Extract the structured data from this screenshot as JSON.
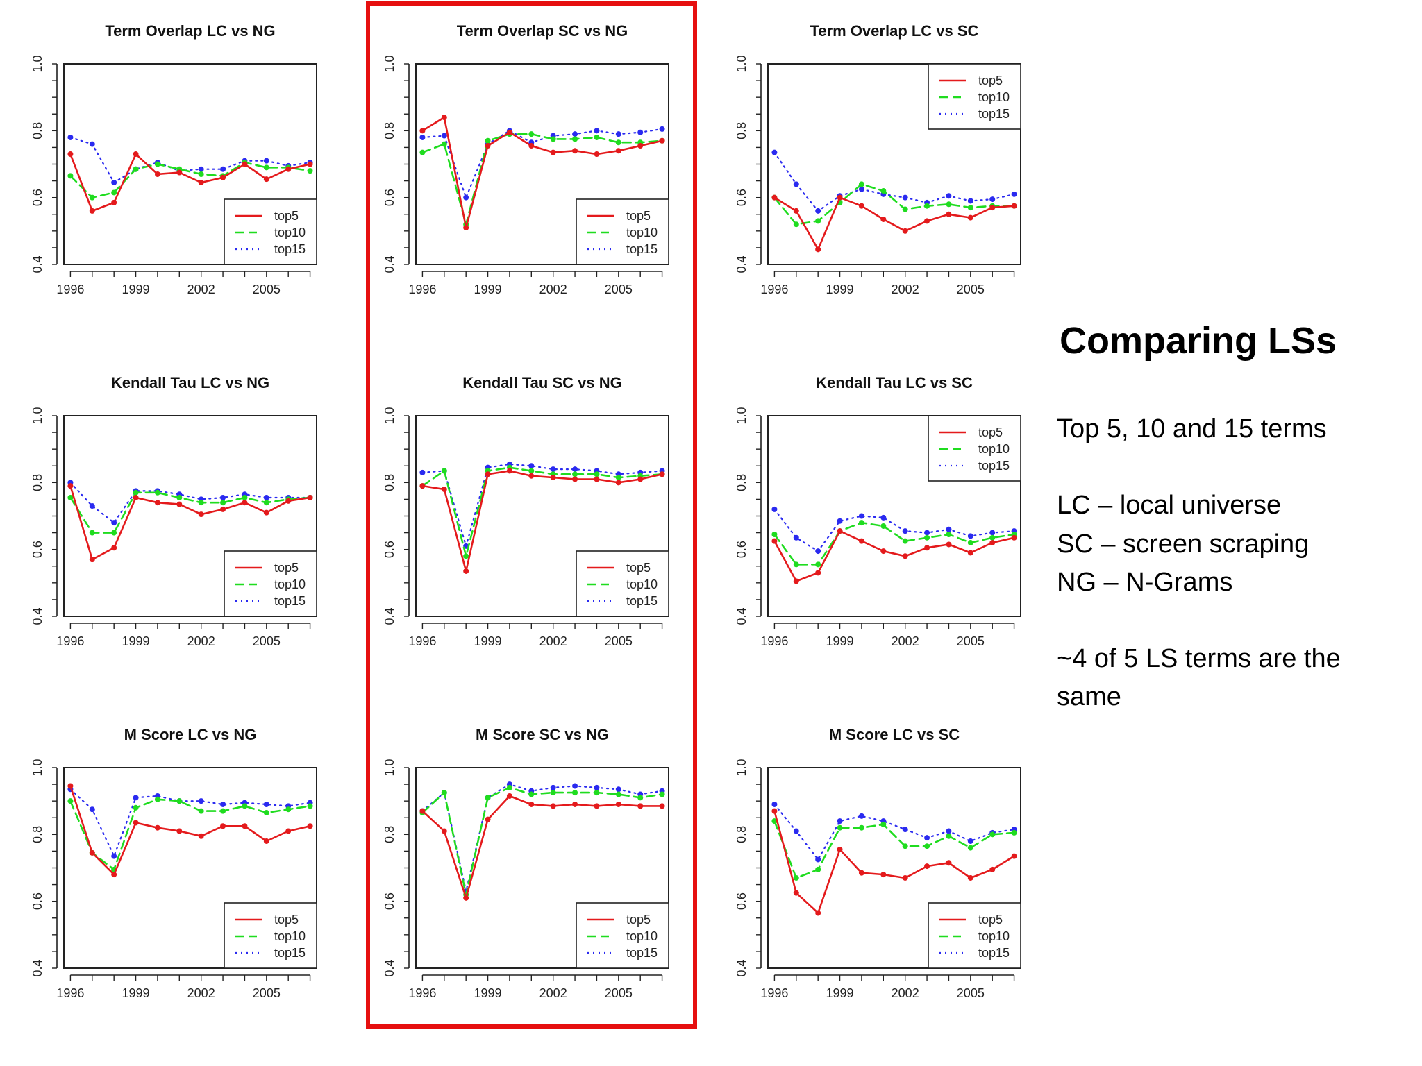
{
  "slide": {
    "title": "Comparing LSs",
    "subtitle": "Top 5, 10 and 15 terms",
    "definitions": [
      "LC – local universe",
      "SC – screen scraping",
      "NG – N-Grams"
    ],
    "note": "~4 of 5 LS terms are the same"
  },
  "colors": {
    "top5": "#e41a1c",
    "top10": "#1fdc1f",
    "top15": "#2a2af0",
    "highlight": "#e60f0f"
  },
  "highlighted_column": "SC vs NG",
  "chart_data": [
    {
      "type": "line",
      "title": "Term Overlap LC vs NG",
      "xlabel": "",
      "ylabel": "",
      "x": [
        1996,
        1997,
        1998,
        1999,
        2000,
        2001,
        2002,
        2003,
        2004,
        2005,
        2006,
        2007
      ],
      "xticks": [
        1996,
        1999,
        2002,
        2005
      ],
      "ylim": [
        0.4,
        1.0
      ],
      "yticks": [
        0.4,
        0.6,
        0.8,
        1.0
      ],
      "legend_position": "bottomright",
      "grid": false,
      "series": [
        {
          "name": "top5",
          "values": [
            0.73,
            0.56,
            0.585,
            0.73,
            0.67,
            0.675,
            0.645,
            0.66,
            0.7,
            0.655,
            0.685,
            0.7
          ]
        },
        {
          "name": "top10",
          "values": [
            0.665,
            0.6,
            0.615,
            0.685,
            0.7,
            0.685,
            0.67,
            0.665,
            0.705,
            0.69,
            0.69,
            0.68
          ]
        },
        {
          "name": "top15",
          "values": [
            0.78,
            0.76,
            0.645,
            0.685,
            0.705,
            0.68,
            0.685,
            0.685,
            0.71,
            0.71,
            0.695,
            0.705
          ]
        }
      ]
    },
    {
      "type": "line",
      "title": "Term Overlap SC vs NG",
      "xlabel": "",
      "ylabel": "",
      "x": [
        1996,
        1997,
        1998,
        1999,
        2000,
        2001,
        2002,
        2003,
        2004,
        2005,
        2006,
        2007
      ],
      "xticks": [
        1996,
        1999,
        2002,
        2005
      ],
      "ylim": [
        0.4,
        1.0
      ],
      "yticks": [
        0.4,
        0.6,
        0.8,
        1.0
      ],
      "legend_position": "bottomright",
      "grid": false,
      "series": [
        {
          "name": "top5",
          "values": [
            0.8,
            0.84,
            0.51,
            0.755,
            0.795,
            0.755,
            0.735,
            0.74,
            0.73,
            0.74,
            0.755,
            0.77
          ]
        },
        {
          "name": "top10",
          "values": [
            0.735,
            0.76,
            0.52,
            0.77,
            0.79,
            0.79,
            0.775,
            0.775,
            0.78,
            0.765,
            0.765,
            0.77
          ]
        },
        {
          "name": "top15",
          "values": [
            0.78,
            0.785,
            0.6,
            0.76,
            0.8,
            0.765,
            0.785,
            0.79,
            0.8,
            0.79,
            0.795,
            0.805
          ]
        }
      ]
    },
    {
      "type": "line",
      "title": "Term Overlap LC vs SC",
      "xlabel": "",
      "ylabel": "",
      "x": [
        1996,
        1997,
        1998,
        1999,
        2000,
        2001,
        2002,
        2003,
        2004,
        2005,
        2006,
        2007
      ],
      "xticks": [
        1996,
        1999,
        2002,
        2005
      ],
      "ylim": [
        0.4,
        1.0
      ],
      "yticks": [
        0.4,
        0.6,
        0.8,
        1.0
      ],
      "legend_position": "topright",
      "grid": false,
      "series": [
        {
          "name": "top5",
          "values": [
            0.6,
            0.56,
            0.445,
            0.6,
            0.575,
            0.535,
            0.5,
            0.53,
            0.55,
            0.54,
            0.57,
            0.575
          ]
        },
        {
          "name": "top10",
          "values": [
            0.6,
            0.52,
            0.53,
            0.585,
            0.64,
            0.62,
            0.565,
            0.575,
            0.58,
            0.57,
            0.575,
            0.575
          ]
        },
        {
          "name": "top15",
          "values": [
            0.735,
            0.64,
            0.56,
            0.605,
            0.625,
            0.61,
            0.6,
            0.585,
            0.605,
            0.59,
            0.595,
            0.61
          ]
        }
      ]
    },
    {
      "type": "line",
      "title": "Kendall Tau LC vs NG",
      "xlabel": "",
      "ylabel": "",
      "x": [
        1996,
        1997,
        1998,
        1999,
        2000,
        2001,
        2002,
        2003,
        2004,
        2005,
        2006,
        2007
      ],
      "xticks": [
        1996,
        1999,
        2002,
        2005
      ],
      "ylim": [
        0.4,
        1.0
      ],
      "yticks": [
        0.4,
        0.6,
        0.8,
        1.0
      ],
      "legend_position": "bottomright",
      "grid": false,
      "series": [
        {
          "name": "top5",
          "values": [
            0.79,
            0.57,
            0.605,
            0.755,
            0.74,
            0.735,
            0.705,
            0.72,
            0.74,
            0.71,
            0.745,
            0.755
          ]
        },
        {
          "name": "top10",
          "values": [
            0.755,
            0.65,
            0.65,
            0.77,
            0.77,
            0.755,
            0.74,
            0.74,
            0.755,
            0.74,
            0.75,
            0.755
          ]
        },
        {
          "name": "top15",
          "values": [
            0.8,
            0.73,
            0.68,
            0.775,
            0.775,
            0.765,
            0.75,
            0.755,
            0.765,
            0.755,
            0.755,
            0.755
          ]
        }
      ]
    },
    {
      "type": "line",
      "title": "Kendall Tau SC vs NG",
      "xlabel": "",
      "ylabel": "",
      "x": [
        1996,
        1997,
        1998,
        1999,
        2000,
        2001,
        2002,
        2003,
        2004,
        2005,
        2006,
        2007
      ],
      "xticks": [
        1996,
        1999,
        2002,
        2005
      ],
      "ylim": [
        0.4,
        1.0
      ],
      "yticks": [
        0.4,
        0.6,
        0.8,
        1.0
      ],
      "legend_position": "bottomright",
      "grid": false,
      "series": [
        {
          "name": "top5",
          "values": [
            0.79,
            0.78,
            0.535,
            0.825,
            0.835,
            0.82,
            0.815,
            0.81,
            0.81,
            0.8,
            0.81,
            0.825
          ]
        },
        {
          "name": "top10",
          "values": [
            0.79,
            0.835,
            0.58,
            0.835,
            0.845,
            0.835,
            0.825,
            0.825,
            0.825,
            0.815,
            0.82,
            0.825
          ]
        },
        {
          "name": "top15",
          "values": [
            0.83,
            0.835,
            0.61,
            0.845,
            0.855,
            0.85,
            0.84,
            0.84,
            0.835,
            0.825,
            0.83,
            0.835
          ]
        }
      ]
    },
    {
      "type": "line",
      "title": "Kendall Tau LC vs SC",
      "xlabel": "",
      "ylabel": "",
      "x": [
        1996,
        1997,
        1998,
        1999,
        2000,
        2001,
        2002,
        2003,
        2004,
        2005,
        2006,
        2007
      ],
      "xticks": [
        1996,
        1999,
        2002,
        2005
      ],
      "ylim": [
        0.4,
        1.0
      ],
      "yticks": [
        0.4,
        0.6,
        0.8,
        1.0
      ],
      "legend_position": "topright",
      "grid": false,
      "series": [
        {
          "name": "top5",
          "values": [
            0.625,
            0.505,
            0.53,
            0.655,
            0.625,
            0.595,
            0.58,
            0.605,
            0.615,
            0.59,
            0.62,
            0.635
          ]
        },
        {
          "name": "top10",
          "values": [
            0.645,
            0.555,
            0.555,
            0.655,
            0.68,
            0.67,
            0.625,
            0.635,
            0.645,
            0.62,
            0.635,
            0.645
          ]
        },
        {
          "name": "top15",
          "values": [
            0.72,
            0.635,
            0.595,
            0.685,
            0.7,
            0.695,
            0.655,
            0.65,
            0.66,
            0.64,
            0.65,
            0.655
          ]
        }
      ]
    },
    {
      "type": "line",
      "title": "M Score LC vs NG",
      "xlabel": "",
      "ylabel": "",
      "x": [
        1996,
        1997,
        1998,
        1999,
        2000,
        2001,
        2002,
        2003,
        2004,
        2005,
        2006,
        2007
      ],
      "xticks": [
        1996,
        1999,
        2002,
        2005
      ],
      "ylim": [
        0.4,
        1.0
      ],
      "yticks": [
        0.4,
        0.6,
        0.8,
        1.0
      ],
      "legend_position": "bottomright",
      "grid": false,
      "series": [
        {
          "name": "top5",
          "values": [
            0.945,
            0.745,
            0.68,
            0.835,
            0.82,
            0.81,
            0.795,
            0.825,
            0.825,
            0.78,
            0.81,
            0.825
          ]
        },
        {
          "name": "top10",
          "values": [
            0.9,
            0.745,
            0.695,
            0.88,
            0.905,
            0.9,
            0.87,
            0.87,
            0.885,
            0.865,
            0.875,
            0.885
          ]
        },
        {
          "name": "top15",
          "values": [
            0.935,
            0.875,
            0.735,
            0.91,
            0.915,
            0.9,
            0.9,
            0.89,
            0.895,
            0.89,
            0.885,
            0.895
          ]
        }
      ]
    },
    {
      "type": "line",
      "title": "M Score SC vs NG",
      "xlabel": "",
      "ylabel": "",
      "x": [
        1996,
        1997,
        1998,
        1999,
        2000,
        2001,
        2002,
        2003,
        2004,
        2005,
        2006,
        2007
      ],
      "xticks": [
        1996,
        1999,
        2002,
        2005
      ],
      "ylim": [
        0.4,
        1.0
      ],
      "yticks": [
        0.4,
        0.6,
        0.8,
        1.0
      ],
      "legend_position": "bottomright",
      "grid": false,
      "series": [
        {
          "name": "top5",
          "values": [
            0.87,
            0.81,
            0.61,
            0.845,
            0.915,
            0.89,
            0.885,
            0.89,
            0.885,
            0.89,
            0.885,
            0.885
          ]
        },
        {
          "name": "top10",
          "values": [
            0.865,
            0.925,
            0.62,
            0.91,
            0.94,
            0.92,
            0.925,
            0.925,
            0.925,
            0.92,
            0.91,
            0.92
          ]
        },
        {
          "name": "top15",
          "values": [
            0.87,
            0.925,
            0.63,
            0.91,
            0.95,
            0.93,
            0.94,
            0.945,
            0.94,
            0.935,
            0.92,
            0.93
          ]
        }
      ]
    },
    {
      "type": "line",
      "title": "M Score LC vs SC",
      "xlabel": "",
      "ylabel": "",
      "x": [
        1996,
        1997,
        1998,
        1999,
        2000,
        2001,
        2002,
        2003,
        2004,
        2005,
        2006,
        2007
      ],
      "xticks": [
        1996,
        1999,
        2002,
        2005
      ],
      "ylim": [
        0.4,
        1.0
      ],
      "yticks": [
        0.4,
        0.6,
        0.8,
        1.0
      ],
      "legend_position": "bottomright",
      "grid": false,
      "series": [
        {
          "name": "top5",
          "values": [
            0.87,
            0.625,
            0.565,
            0.755,
            0.685,
            0.68,
            0.67,
            0.705,
            0.715,
            0.67,
            0.695,
            0.735
          ]
        },
        {
          "name": "top10",
          "values": [
            0.84,
            0.67,
            0.695,
            0.82,
            0.82,
            0.83,
            0.765,
            0.765,
            0.795,
            0.76,
            0.8,
            0.805
          ]
        },
        {
          "name": "top15",
          "values": [
            0.89,
            0.81,
            0.725,
            0.84,
            0.855,
            0.84,
            0.815,
            0.79,
            0.81,
            0.78,
            0.805,
            0.815
          ]
        }
      ]
    }
  ]
}
